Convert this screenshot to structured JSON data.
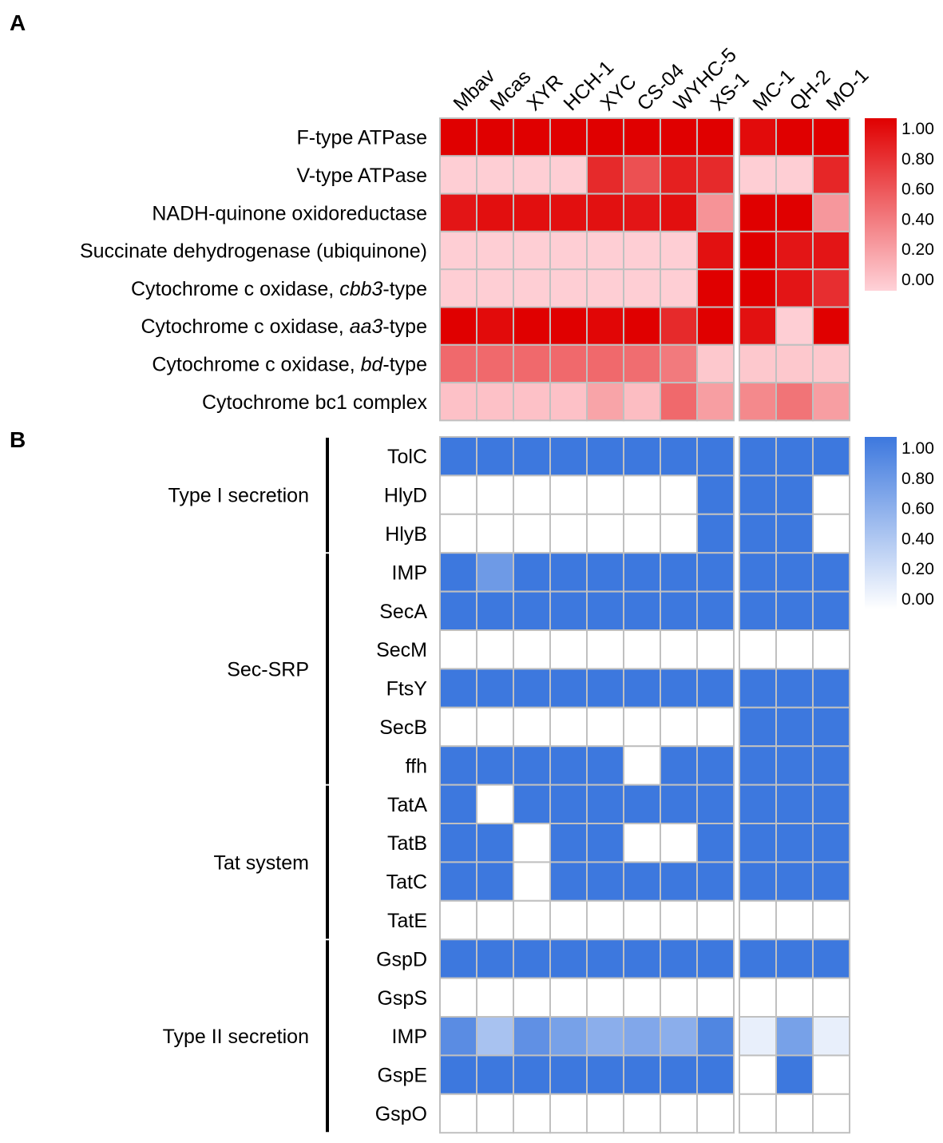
{
  "panel_labels": {
    "a": "A",
    "b": "B"
  },
  "colors": {
    "red_high": "#e00000",
    "red_low": "#ffd2d8",
    "blue_high": "#3d78de",
    "blue_low": "#ffffff",
    "grid": "#c0c0c0",
    "highlight": "#e00000"
  },
  "chart_data": [
    {
      "type": "heatmap",
      "title": "A",
      "columns": [
        "Mbav",
        "Mcas",
        "XYR",
        "HCH-1",
        "XYC",
        "CS-04",
        "WYHC-5",
        "XS-1",
        "MC-1",
        "QH-2",
        "MO-1"
      ],
      "column_groups": [
        8,
        3
      ],
      "highlight_column": "XS-1",
      "rows": [
        {
          "label": "F-type ATPase",
          "pre": "F-type ATPase",
          "ital": "",
          "post": "",
          "values": [
            1.0,
            1.0,
            1.0,
            1.0,
            1.0,
            1.0,
            1.0,
            1.0,
            0.95,
            1.0,
            1.0
          ]
        },
        {
          "label": "V-type ATPase",
          "pre": "V-type ATPase",
          "ital": "",
          "post": "",
          "values": [
            0.02,
            0.02,
            0.02,
            0.02,
            0.8,
            0.62,
            0.85,
            0.8,
            0.02,
            0.02,
            0.82
          ]
        },
        {
          "label": "NADH-quinone oxidoreductase",
          "pre": "NADH-quinone oxidoreductase",
          "ital": "",
          "post": "",
          "values": [
            0.9,
            0.93,
            0.93,
            0.93,
            0.92,
            0.9,
            0.93,
            0.3,
            1.0,
            1.0,
            0.28
          ]
        },
        {
          "label": "Succinate dehydrogenase (ubiquinone)",
          "pre": "Succinate dehydrogenase (ubiquinone)",
          "ital": "",
          "post": "",
          "values": [
            0.02,
            0.02,
            0.02,
            0.02,
            0.02,
            0.02,
            0.02,
            0.92,
            1.0,
            0.9,
            0.9
          ]
        },
        {
          "label": "Cytochrome c oxidase, cbb3-type",
          "pre": "Cytochrome c oxidase, ",
          "ital": "cbb3",
          "post": "-type",
          "values": [
            0.02,
            0.02,
            0.02,
            0.02,
            0.02,
            0.02,
            0.02,
            1.0,
            1.0,
            0.9,
            0.78
          ]
        },
        {
          "label": "Cytochrome c oxidase, aa3-type",
          "pre": "Cytochrome c oxidase, ",
          "ital": "aa3",
          "post": "-type",
          "values": [
            1.0,
            0.95,
            1.0,
            1.0,
            0.97,
            1.0,
            0.8,
            1.0,
            0.92,
            0.02,
            1.0
          ]
        },
        {
          "label": "Cytochrome c oxidase, bd-type",
          "pre": "Cytochrome c oxidase, ",
          "ital": "bd",
          "post": "-type",
          "values": [
            0.5,
            0.5,
            0.5,
            0.5,
            0.5,
            0.48,
            0.42,
            0.05,
            0.05,
            0.05,
            0.05
          ]
        },
        {
          "label": "Cytochrome bc1 complex",
          "pre": "Cytochrome bc1 complex",
          "ital": "",
          "post": "",
          "values": [
            0.08,
            0.08,
            0.08,
            0.08,
            0.22,
            0.1,
            0.5,
            0.25,
            0.35,
            0.45,
            0.25
          ]
        }
      ],
      "legend": {
        "min": 0,
        "max": 1,
        "ticks": [
          "1.00",
          "0.80",
          "0.60",
          "0.40",
          "0.20",
          "0.00"
        ]
      }
    },
    {
      "type": "heatmap",
      "title": "B",
      "columns": [
        "Mbav",
        "Mcas",
        "XYR",
        "HCH-1",
        "XYC",
        "CS-04",
        "WYHC-5",
        "XS-1",
        "MC-1",
        "QH-2",
        "MO-1"
      ],
      "column_groups": [
        8,
        3
      ],
      "groups": [
        {
          "name": "Type I secretion",
          "rows": [
            0,
            2
          ]
        },
        {
          "name": "Sec-SRP",
          "rows": [
            3,
            8
          ]
        },
        {
          "name": "Tat system",
          "rows": [
            9,
            12
          ]
        },
        {
          "name": "Type II secretion",
          "rows": [
            13,
            17
          ]
        }
      ],
      "rows": [
        {
          "label": "TolC",
          "values": [
            1,
            1,
            1,
            1,
            1,
            1,
            1,
            1,
            1,
            1,
            1
          ]
        },
        {
          "label": "HlyD",
          "values": [
            0,
            0,
            0,
            0,
            0,
            0,
            0,
            1,
            1,
            1,
            0
          ]
        },
        {
          "label": "HlyB",
          "values": [
            0,
            0,
            0,
            0,
            0,
            0,
            0,
            1,
            1,
            1,
            0
          ]
        },
        {
          "label": "IMP",
          "values": [
            1,
            0.75,
            1,
            1,
            1,
            1,
            1,
            1,
            1,
            1,
            1
          ]
        },
        {
          "label": "SecA",
          "values": [
            1,
            1,
            1,
            1,
            1,
            1,
            1,
            1,
            1,
            1,
            1
          ]
        },
        {
          "label": "SecM",
          "values": [
            0,
            0,
            0,
            0,
            0,
            0,
            0,
            0,
            0,
            0,
            0
          ]
        },
        {
          "label": "FtsY",
          "values": [
            1,
            1,
            1,
            1,
            1,
            1,
            1,
            1,
            1,
            1,
            1
          ]
        },
        {
          "label": "SecB",
          "values": [
            0,
            0,
            0,
            0,
            0,
            0,
            0,
            0,
            1,
            1,
            1
          ]
        },
        {
          "label": "ffh",
          "values": [
            1,
            1,
            1,
            1,
            1,
            0,
            1,
            1,
            1,
            1,
            1
          ]
        },
        {
          "label": "TatA",
          "values": [
            1,
            0,
            1,
            1,
            1,
            1,
            1,
            1,
            1,
            1,
            1
          ]
        },
        {
          "label": "TatB",
          "values": [
            1,
            1,
            0,
            1,
            1,
            0,
            0,
            1,
            1,
            1,
            1
          ]
        },
        {
          "label": "TatC",
          "values": [
            1,
            1,
            0,
            1,
            1,
            1,
            1,
            1,
            1,
            1,
            1
          ]
        },
        {
          "label": "TatE",
          "values": [
            0,
            0,
            0,
            0,
            0,
            0,
            0,
            0,
            0,
            0,
            0
          ]
        },
        {
          "label": "GspD",
          "values": [
            1,
            1,
            1,
            1,
            1,
            1,
            1,
            1,
            1,
            1,
            1
          ]
        },
        {
          "label": "GspS",
          "values": [
            0,
            0,
            0,
            0,
            0,
            0,
            0,
            0,
            0,
            0,
            0
          ]
        },
        {
          "label": "IMP",
          "values": [
            0.85,
            0.45,
            0.82,
            0.7,
            0.6,
            0.65,
            0.6,
            0.9,
            0.12,
            0.7,
            0.12
          ]
        },
        {
          "label": "GspE",
          "values": [
            1,
            1,
            1,
            1,
            1,
            1,
            1,
            1,
            0,
            1,
            0
          ]
        },
        {
          "label": "GspO",
          "values": [
            0,
            0,
            0,
            0,
            0,
            0,
            0,
            0,
            0,
            0,
            0
          ]
        }
      ],
      "legend": {
        "min": 0,
        "max": 1,
        "ticks": [
          "1.00",
          "0.80",
          "0.60",
          "0.40",
          "0.20",
          "0.00"
        ]
      }
    }
  ]
}
